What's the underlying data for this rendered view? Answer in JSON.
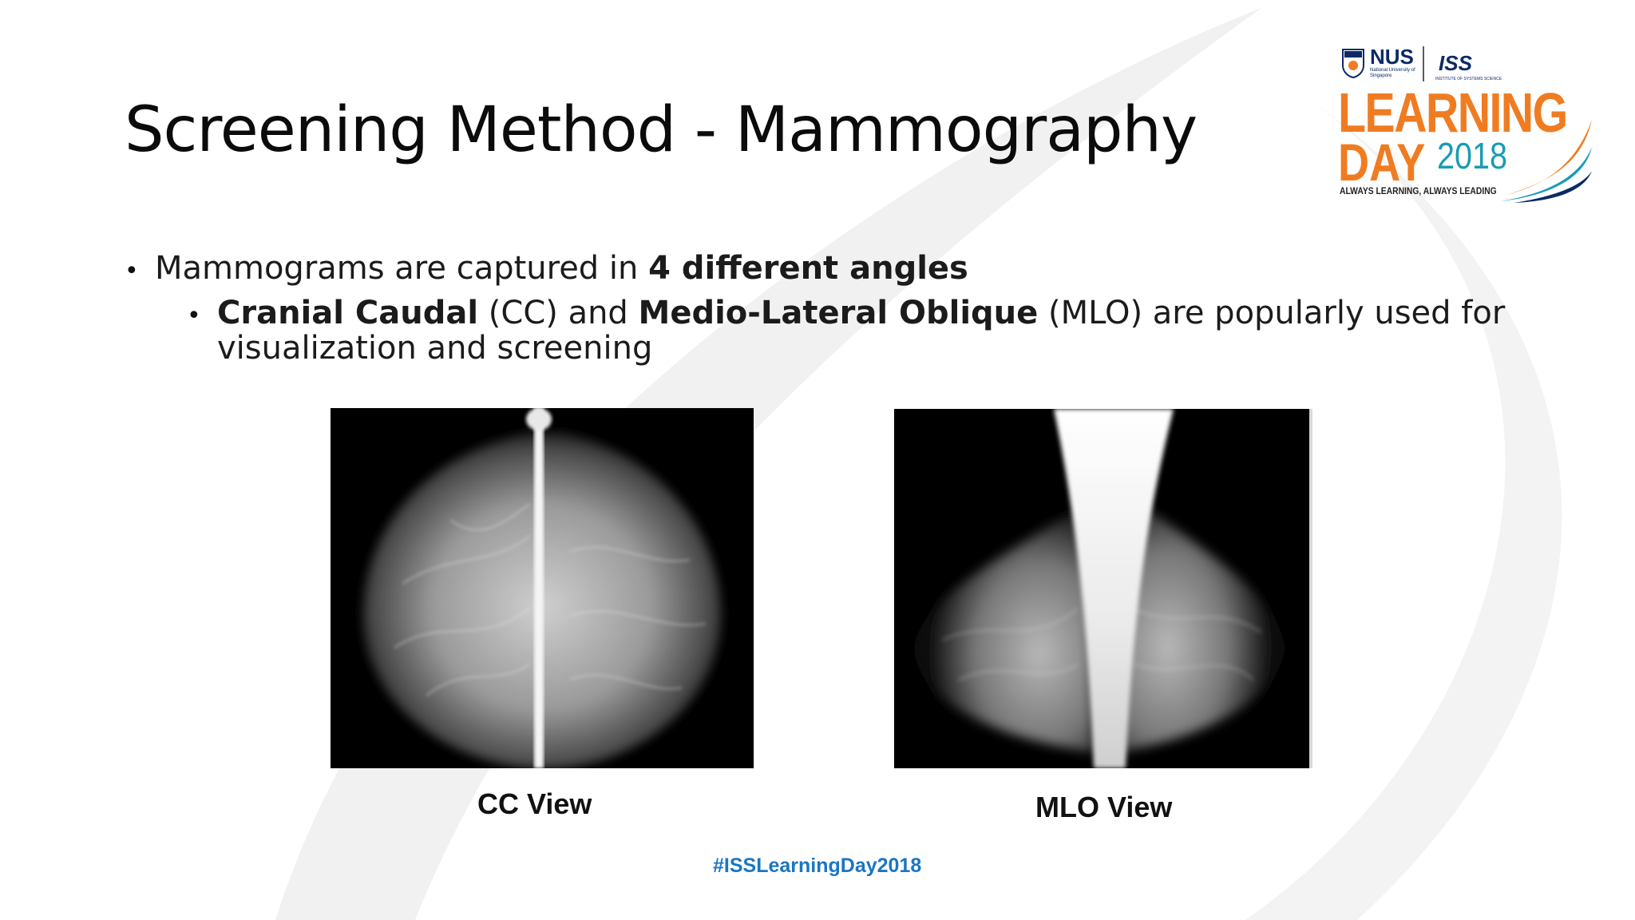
{
  "slide": {
    "title": "Screening Method - Mammography",
    "bullet_1": {
      "prefix": "Mammograms are captured in ",
      "emphasis": "4 different angles"
    },
    "bullet_2": {
      "term_1": "Cranial Caudal",
      "abbr_1": " (CC) and ",
      "term_2": "Medio-Lateral Oblique",
      "rest": " (MLO) are popularly used for visualization and screening"
    },
    "images": [
      {
        "caption": "CC View"
      },
      {
        "caption": "MLO View"
      }
    ],
    "hashtag": "#ISSLearningDay2018"
  },
  "logo": {
    "nus": "NUS",
    "nus_sub": "National University of Singapore",
    "iss": "ISS",
    "iss_sub": "INSTITUTE OF SYSTEMS SCIENCE",
    "learning": "LEARNING",
    "day": "DAY",
    "year": "2018",
    "tagline": "ALWAYS LEARNING, ALWAYS LEADING",
    "colors": {
      "orange": "#f07c22",
      "teal": "#1a9bb5",
      "navy": "#0b2a66"
    }
  }
}
